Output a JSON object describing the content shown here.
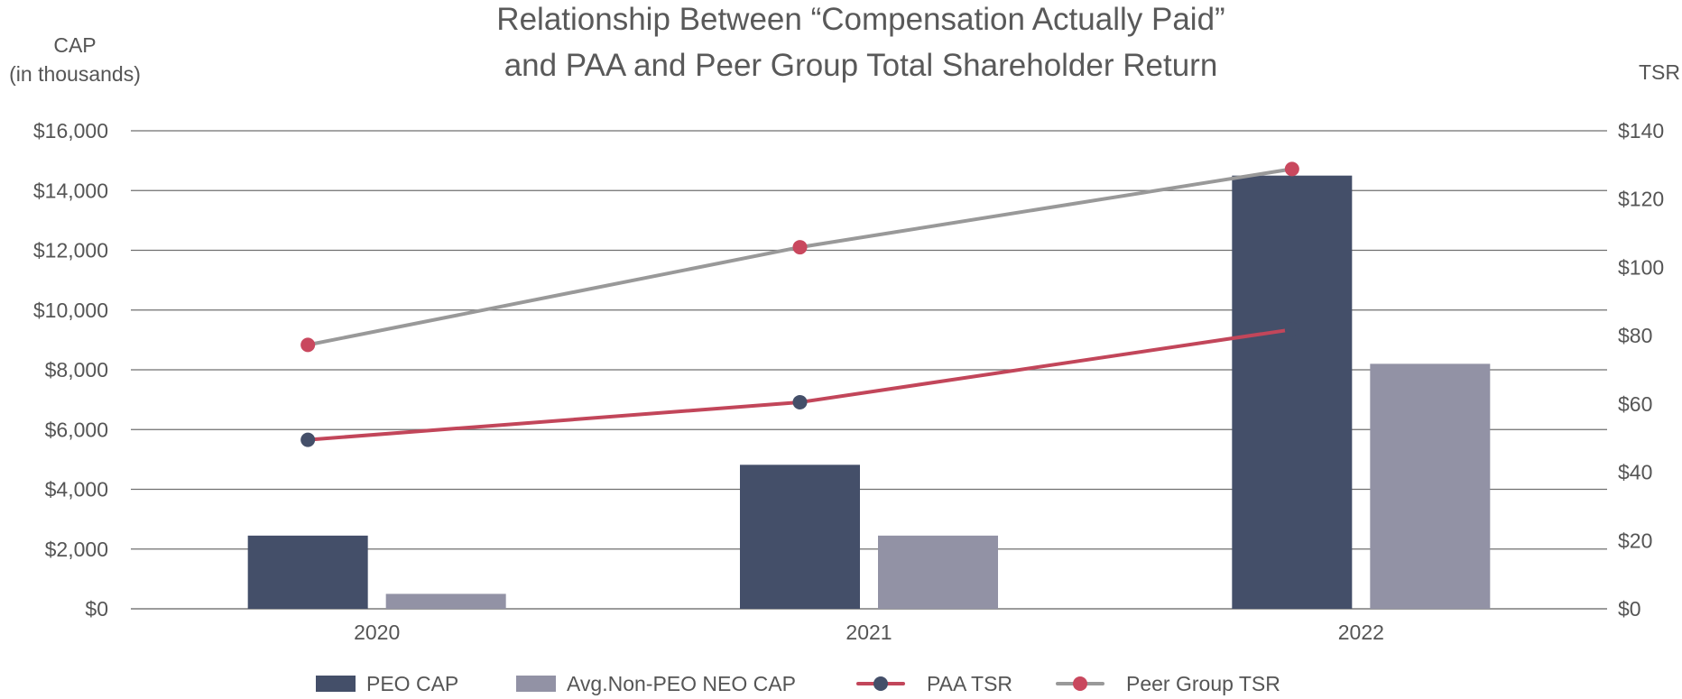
{
  "chart_data": {
    "type": "bar",
    "title_lines": [
      "Relationship Between “Compensation Actually Paid”",
      "and PAA and Peer Group Total Shareholder Return"
    ],
    "y_left_label_lines": [
      "CAP",
      "(in thousands)"
    ],
    "y_right_label": "TSR",
    "categories": [
      "2020",
      "2021",
      "2022"
    ],
    "y_left": {
      "min": 0,
      "max": 16000,
      "step": 2000,
      "ticks": [
        "$0",
        "$2,000",
        "$4,000",
        "$6,000",
        "$8,000",
        "$10,000",
        "$12,000",
        "$14,000",
        "$16,000"
      ]
    },
    "y_right": {
      "min": 0,
      "max": 140,
      "step": 20,
      "ticks": [
        "$0",
        "$20",
        "$40",
        "$60",
        "$80",
        "$100",
        "$120",
        "$140"
      ]
    },
    "bar_series": [
      {
        "name": "PEO CAP",
        "color": "#444F69",
        "values": [
          2450,
          4820,
          14500
        ]
      },
      {
        "name": "Avg.Non-PEO NEO CAP",
        "color": "#9292A5",
        "values": [
          500,
          2450,
          8200
        ]
      }
    ],
    "line_series": [
      {
        "name": "PAA TSR",
        "axis": "right",
        "line_color": "#C2465A",
        "marker_color": "#444F69",
        "values": [
          49.5,
          60.5,
          81.8
        ]
      },
      {
        "name": "Peer Group TSR",
        "axis": "right",
        "line_color": "#999999",
        "marker_color": "#C9485E",
        "values": [
          77.3,
          105.9,
          128.8
        ]
      }
    ],
    "gridlines": true,
    "legend_position": "bottom"
  }
}
